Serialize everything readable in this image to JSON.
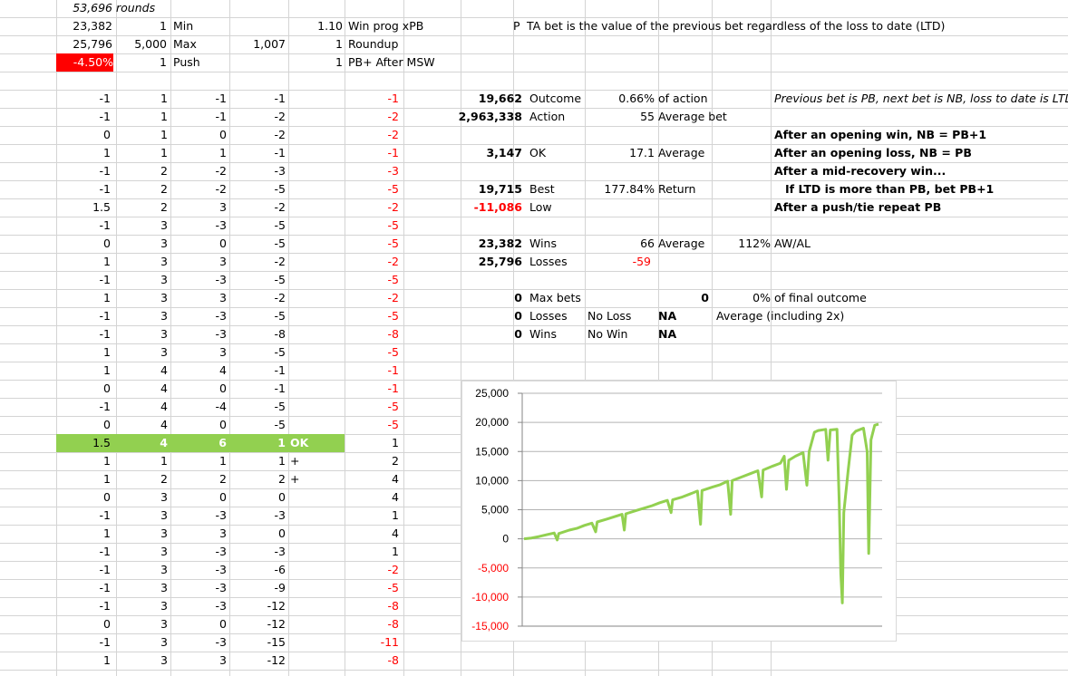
{
  "header_rows": [
    {
      "a": "53,696",
      "b": "rounds"
    },
    {
      "a": "23,382",
      "c": "1",
      "d": "Min",
      "f": "1.10",
      "g": "Win prog xPB"
    },
    {
      "a": "25,796",
      "c": "5,000",
      "d": "Max",
      "e": "1,007",
      "f": "1",
      "g": "Roundup"
    },
    {
      "a": "-4.50%",
      "c": "1",
      "d": "Push",
      "f": "1",
      "g": "PB+ After MSW"
    }
  ],
  "note_p": "P",
  "note_text": "TA bet is the value of the previous bet regardless of the loss to date (LTD)",
  "left_table": [
    [
      "-1",
      "1",
      "-1",
      "-1",
      "-1"
    ],
    [
      "-1",
      "1",
      "-1",
      "-2",
      "-2"
    ],
    [
      "0",
      "1",
      "0",
      "-2",
      "-2"
    ],
    [
      "1",
      "1",
      "1",
      "-1",
      "-1"
    ],
    [
      "-1",
      "2",
      "-2",
      "-3",
      "-3"
    ],
    [
      "-1",
      "2",
      "-2",
      "-5",
      "-5"
    ],
    [
      "1.5",
      "2",
      "3",
      "-2",
      "-2"
    ],
    [
      "-1",
      "3",
      "-3",
      "-5",
      "-5"
    ],
    [
      "0",
      "3",
      "0",
      "-5",
      "-5"
    ],
    [
      "1",
      "3",
      "3",
      "-2",
      "-2"
    ],
    [
      "-1",
      "3",
      "-3",
      "-5",
      "-5"
    ],
    [
      "1",
      "3",
      "3",
      "-2",
      "-2"
    ],
    [
      "-1",
      "3",
      "-3",
      "-5",
      "-5"
    ],
    [
      "-1",
      "3",
      "-3",
      "-8",
      "-8"
    ],
    [
      "1",
      "3",
      "3",
      "-5",
      "-5"
    ],
    [
      "1",
      "4",
      "4",
      "-1",
      "-1"
    ],
    [
      "0",
      "4",
      "0",
      "-1",
      "-1"
    ],
    [
      "-1",
      "4",
      "-4",
      "-5",
      "-5"
    ],
    [
      "0",
      "4",
      "0",
      "-5",
      "-5"
    ],
    [
      "1.5",
      "4",
      "6",
      "1",
      "1"
    ],
    [
      "1",
      "1",
      "1",
      "1",
      "2"
    ],
    [
      "1",
      "2",
      "2",
      "2",
      "4"
    ],
    [
      "0",
      "3",
      "0",
      "0",
      "4"
    ],
    [
      "-1",
      "3",
      "-3",
      "-3",
      "1"
    ],
    [
      "1",
      "3",
      "3",
      "0",
      "4"
    ],
    [
      "-1",
      "3",
      "-3",
      "-3",
      "1"
    ],
    [
      "-1",
      "3",
      "-3",
      "-6",
      "-2"
    ],
    [
      "-1",
      "3",
      "-3",
      "-9",
      "-5"
    ],
    [
      "-1",
      "3",
      "-3",
      "-12",
      "-8"
    ],
    [
      "0",
      "3",
      "0",
      "-12",
      "-8"
    ],
    [
      "-1",
      "3",
      "-3",
      "-15",
      "-11"
    ],
    [
      "1",
      "3",
      "3",
      "-12",
      "-8"
    ]
  ],
  "left_notes": {
    "ok": "OK",
    "plus1": "+",
    "plus2": "+"
  },
  "stats": {
    "outcome_val": "19,662",
    "outcome_lbl": "Outcome",
    "outcome_pct": "0.66%",
    "outcome_pct_lbl": "of action",
    "action_val": "2,963,338",
    "action_lbl": "Action",
    "avgbet_val": "55",
    "avgbet_lbl": "Average bet",
    "ok_val": "3,147",
    "ok_lbl": "OK",
    "ok_avg_val": "17.1",
    "ok_avg_lbl": "Average",
    "best_val": "19,715",
    "best_lbl": "Best",
    "return_val": "177.84%",
    "return_lbl": "Return",
    "low_val": "-11,086",
    "low_lbl": "Low",
    "wins_val": "23,382",
    "wins_lbl": "Wins",
    "wins_avg_val": "66",
    "wins_avg_lbl": "Average",
    "awal_val": "112%",
    "awal_lbl": "AW/AL",
    "losses_val": "25,796",
    "losses_lbl": "Losses",
    "losses_avg_val": "-59",
    "maxbets_val": "0",
    "maxbets_lbl": "Max bets",
    "maxbets_n": "0",
    "maxbets_pct": "0%",
    "maxbets_pct_lbl": "of final outcome",
    "mlosses_val": "0",
    "mlosses_lbl": "Losses",
    "noloss": "No Loss",
    "na1": "NA",
    "avg_incl": "Average (including 2x)",
    "mwins_val": "0",
    "mwins_lbl": "Wins",
    "nowin": "No Win",
    "na2": "NA"
  },
  "rules": {
    "r0": "Previous bet is PB, next bet is NB, loss to date is LTD",
    "r1": "After an opening win, NB = PB+1",
    "r2": "After an opening loss, NB = PB",
    "r3": "After a mid-recovery win...",
    "r4": "If LTD is more than PB, bet PB+1",
    "r5": "After a push/tie repeat PB"
  },
  "chart_data": {
    "type": "line",
    "series": [
      {
        "color": "#92d050",
        "values": [
          [
            0,
            0
          ],
          [
            1000,
            150
          ],
          [
            2000,
            400
          ],
          [
            3000,
            700
          ],
          [
            4000,
            1000
          ],
          [
            4400,
            -200
          ],
          [
            4600,
            900
          ],
          [
            6000,
            1500
          ],
          [
            7000,
            1800
          ],
          [
            8000,
            2300
          ],
          [
            9000,
            2700
          ],
          [
            9500,
            1200
          ],
          [
            9700,
            2900
          ],
          [
            11000,
            3400
          ],
          [
            12000,
            3800
          ],
          [
            13000,
            4200
          ],
          [
            13300,
            1500
          ],
          [
            13500,
            4300
          ],
          [
            15000,
            4900
          ],
          [
            16000,
            5300
          ],
          [
            17000,
            5700
          ],
          [
            18000,
            6200
          ],
          [
            19000,
            6600
          ],
          [
            19500,
            4500
          ],
          [
            19700,
            6700
          ],
          [
            21000,
            7200
          ],
          [
            22000,
            7700
          ],
          [
            23000,
            8200
          ],
          [
            23400,
            2500
          ],
          [
            23600,
            8300
          ],
          [
            25000,
            8900
          ],
          [
            26000,
            9300
          ],
          [
            27000,
            9900
          ],
          [
            27400,
            4200
          ],
          [
            27600,
            10000
          ],
          [
            29000,
            10700
          ],
          [
            30000,
            11200
          ],
          [
            31000,
            11700
          ],
          [
            31500,
            7200
          ],
          [
            31700,
            11800
          ],
          [
            33000,
            12500
          ],
          [
            34000,
            13000
          ],
          [
            34500,
            14200
          ],
          [
            34800,
            8500
          ],
          [
            35100,
            13500
          ],
          [
            36000,
            14200
          ],
          [
            37000,
            14800
          ],
          [
            37500,
            9200
          ],
          [
            37800,
            15000
          ],
          [
            38500,
            18300
          ],
          [
            39000,
            18600
          ],
          [
            40000,
            18800
          ],
          [
            40300,
            13500
          ],
          [
            40600,
            18700
          ],
          [
            41500,
            18800
          ],
          [
            41800,
            6000
          ],
          [
            42000,
            -6000
          ],
          [
            42200,
            -11000
          ],
          [
            42400,
            4500
          ],
          [
            43000,
            12000
          ],
          [
            43500,
            17800
          ],
          [
            44000,
            18500
          ],
          [
            45000,
            19000
          ],
          [
            45500,
            15000
          ],
          [
            45700,
            -2500
          ],
          [
            46000,
            17000
          ],
          [
            46500,
            19500
          ],
          [
            47000,
            19700
          ]
        ]
      }
    ],
    "ylim": [
      -15000,
      25000
    ],
    "yticks": [
      "25,000",
      "20,000",
      "15,000",
      "10,000",
      "5,000",
      "0",
      "-5,000",
      "-10,000",
      "-15,000"
    ],
    "xmax": 47000,
    "grid": true
  }
}
